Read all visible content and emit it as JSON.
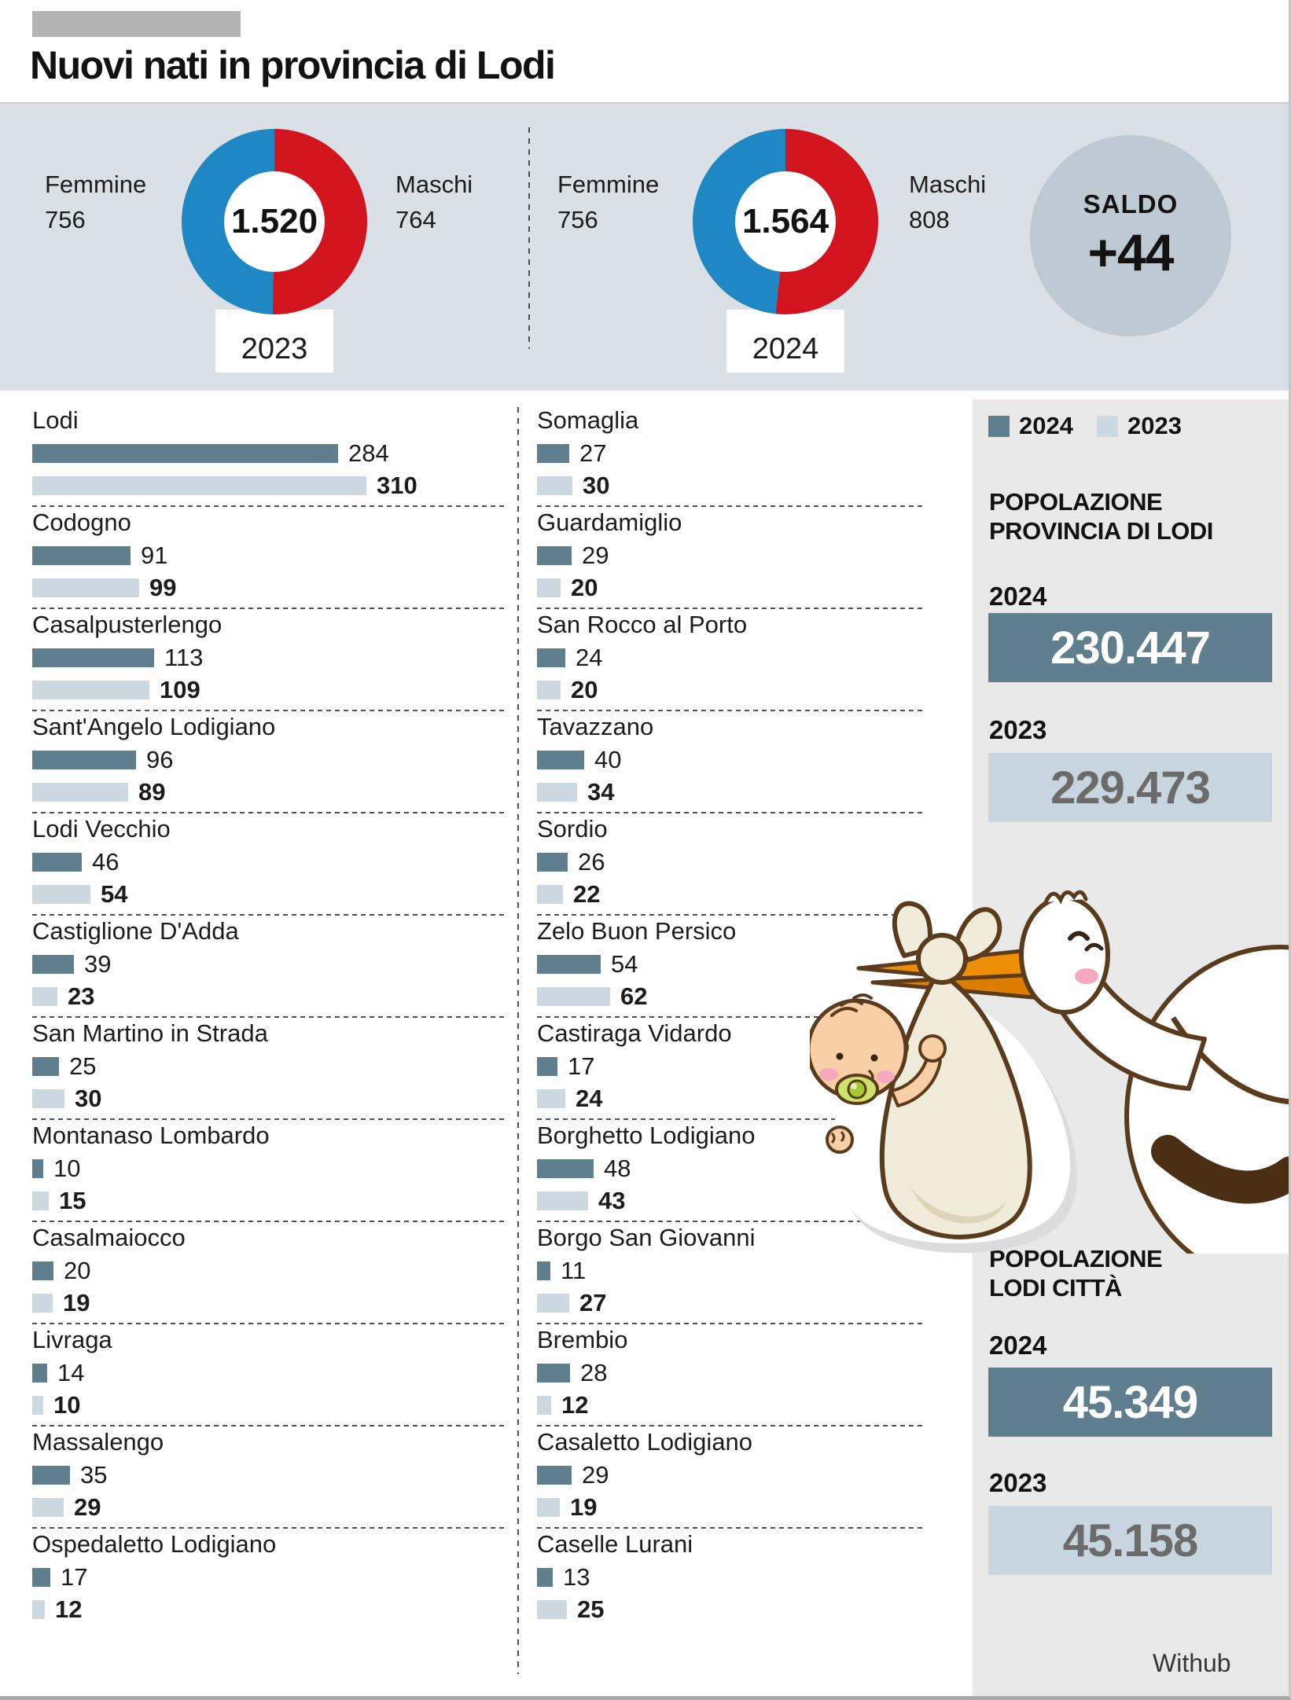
{
  "header": {
    "title": "Nuovi nati in provincia di Lodi"
  },
  "colors": {
    "female_color": "#1e87c4",
    "male_color": "#d2141e",
    "bar_2024": "#5f7f8e",
    "bar_2023": "#ccd9e1",
    "band_bg": "#d9e0e6",
    "panel_bg": "#e9e9e9",
    "saldo_bg": "#becad2"
  },
  "donuts": [
    {
      "year": "2023",
      "total_display": "1.520",
      "female_label": "Femmine",
      "female_display": "756",
      "female": 756,
      "male_label": "Maschi",
      "male_display": "764",
      "male": 764
    },
    {
      "year": "2024",
      "total_display": "1.564",
      "female_label": "Femmine",
      "female_display": "756",
      "female": 756,
      "male_label": "Maschi",
      "male_display": "808",
      "male": 808
    }
  ],
  "saldo": {
    "label": "SALDO",
    "value": "+44"
  },
  "legend": {
    "items": [
      {
        "label": "2024",
        "color": "#5f7f8e"
      },
      {
        "label": "2023",
        "color": "#ccd9e1"
      }
    ]
  },
  "municipalities": {
    "left": [
      {
        "name": "Lodi",
        "v2024": 284,
        "v2023": 310
      },
      {
        "name": "Codogno",
        "v2024": 91,
        "v2023": 99
      },
      {
        "name": "Casalpusterlengo",
        "v2024": 113,
        "v2023": 109
      },
      {
        "name": "Sant'Angelo Lodigiano",
        "v2024": 96,
        "v2023": 89
      },
      {
        "name": "Lodi Vecchio",
        "v2024": 46,
        "v2023": 54
      },
      {
        "name": "Castiglione D'Adda",
        "v2024": 39,
        "v2023": 23
      },
      {
        "name": "San Martino in Strada",
        "v2024": 25,
        "v2023": 30
      },
      {
        "name": "Montanaso Lombardo",
        "v2024": 10,
        "v2023": 15
      },
      {
        "name": "Casalmaiocco",
        "v2024": 20,
        "v2023": 19
      },
      {
        "name": "Livraga",
        "v2024": 14,
        "v2023": 10
      },
      {
        "name": "Massalengo",
        "v2024": 35,
        "v2023": 29
      },
      {
        "name": "Ospedaletto Lodigiano",
        "v2024": 17,
        "v2023": 12
      }
    ],
    "right": [
      {
        "name": "Somaglia",
        "v2024": 27,
        "v2023": 30
      },
      {
        "name": "Guardamiglio",
        "v2024": 29,
        "v2023": 20
      },
      {
        "name": "San Rocco al Porto",
        "v2024": 24,
        "v2023": 20
      },
      {
        "name": "Tavazzano",
        "v2024": 40,
        "v2023": 34
      },
      {
        "name": "Sordio",
        "v2024": 26,
        "v2023": 22
      },
      {
        "name": "Zelo Buon Persico",
        "v2024": 54,
        "v2023": 62
      },
      {
        "name": "Castiraga Vidardo",
        "v2024": 17,
        "v2023": 24
      },
      {
        "name": "Borghetto Lodigiano",
        "v2024": 48,
        "v2023": 43
      },
      {
        "name": "Borgo San Giovanni",
        "v2024": 11,
        "v2023": 27
      },
      {
        "name": "Brembio",
        "v2024": 28,
        "v2023": 12
      },
      {
        "name": "Casaletto Lodigiano",
        "v2024": 29,
        "v2023": 19
      },
      {
        "name": "Caselle Lurani",
        "v2024": 13,
        "v2023": 25
      }
    ]
  },
  "panels": [
    {
      "title_line1": "POPOLAZIONE",
      "title_line2": "PROVINCIA DI LODI",
      "rows": [
        {
          "year": "2024",
          "value": "230.447"
        },
        {
          "year": "2023",
          "value": "229.473"
        }
      ]
    },
    {
      "title_line1": "POPOLAZIONE",
      "title_line2": "LODI CITTÀ",
      "rows": [
        {
          "year": "2024",
          "value": "45.349"
        },
        {
          "year": "2023",
          "value": "45.158"
        }
      ]
    }
  ],
  "credit": "Withub",
  "chart_data": [
    {
      "type": "pie",
      "title": "Nuovi nati 2023",
      "labels": [
        "Femmine",
        "Maschi"
      ],
      "values": [
        756,
        764
      ],
      "center_total": "1.520",
      "colors": [
        "#1e87c4",
        "#d2141e"
      ],
      "legend_position": "sides"
    },
    {
      "type": "pie",
      "title": "Nuovi nati 2024",
      "labels": [
        "Femmine",
        "Maschi"
      ],
      "values": [
        756,
        808
      ],
      "center_total": "1.564",
      "colors": [
        "#1e87c4",
        "#d2141e"
      ],
      "legend_position": "sides"
    },
    {
      "type": "bar",
      "title": "Nuovi nati per comune",
      "categories": [
        "Lodi",
        "Codogno",
        "Casalpusterlengo",
        "Sant'Angelo Lodigiano",
        "Lodi Vecchio",
        "Castiglione D'Adda",
        "San Martino in Strada",
        "Montanaso Lombardo",
        "Casalmaiocco",
        "Livraga",
        "Massalengo",
        "Ospedaletto Lodigiano",
        "Somaglia",
        "Guardamiglio",
        "San Rocco al Porto",
        "Tavazzano",
        "Sordio",
        "Zelo Buon Persico",
        "Castiraga Vidardo",
        "Borghetto Lodigiano",
        "Borgo San Giovanni",
        "Brembio",
        "Casaletto Lodigiano",
        "Caselle Lurani"
      ],
      "series": [
        {
          "name": "2024",
          "values": [
            284,
            91,
            113,
            96,
            46,
            39,
            25,
            10,
            20,
            14,
            35,
            17,
            27,
            29,
            24,
            40,
            26,
            54,
            17,
            48,
            11,
            28,
            29,
            13
          ]
        },
        {
          "name": "2023",
          "values": [
            310,
            99,
            109,
            89,
            54,
            23,
            30,
            15,
            19,
            10,
            29,
            12,
            30,
            20,
            20,
            34,
            22,
            62,
            24,
            43,
            27,
            12,
            19,
            25
          ]
        }
      ],
      "orientation": "horizontal",
      "grid": false,
      "legend_position": "top-right"
    },
    {
      "type": "table",
      "title": "Popolazione provincia di Lodi",
      "rows": [
        [
          "2024",
          "230.447"
        ],
        [
          "2023",
          "229.473"
        ]
      ]
    },
    {
      "type": "table",
      "title": "Popolazione Lodi città",
      "rows": [
        [
          "2024",
          "45.349"
        ],
        [
          "2023",
          "45.158"
        ]
      ]
    },
    {
      "type": "table",
      "title": "Saldo",
      "rows": [
        [
          "SALDO",
          "+44"
        ]
      ]
    }
  ]
}
